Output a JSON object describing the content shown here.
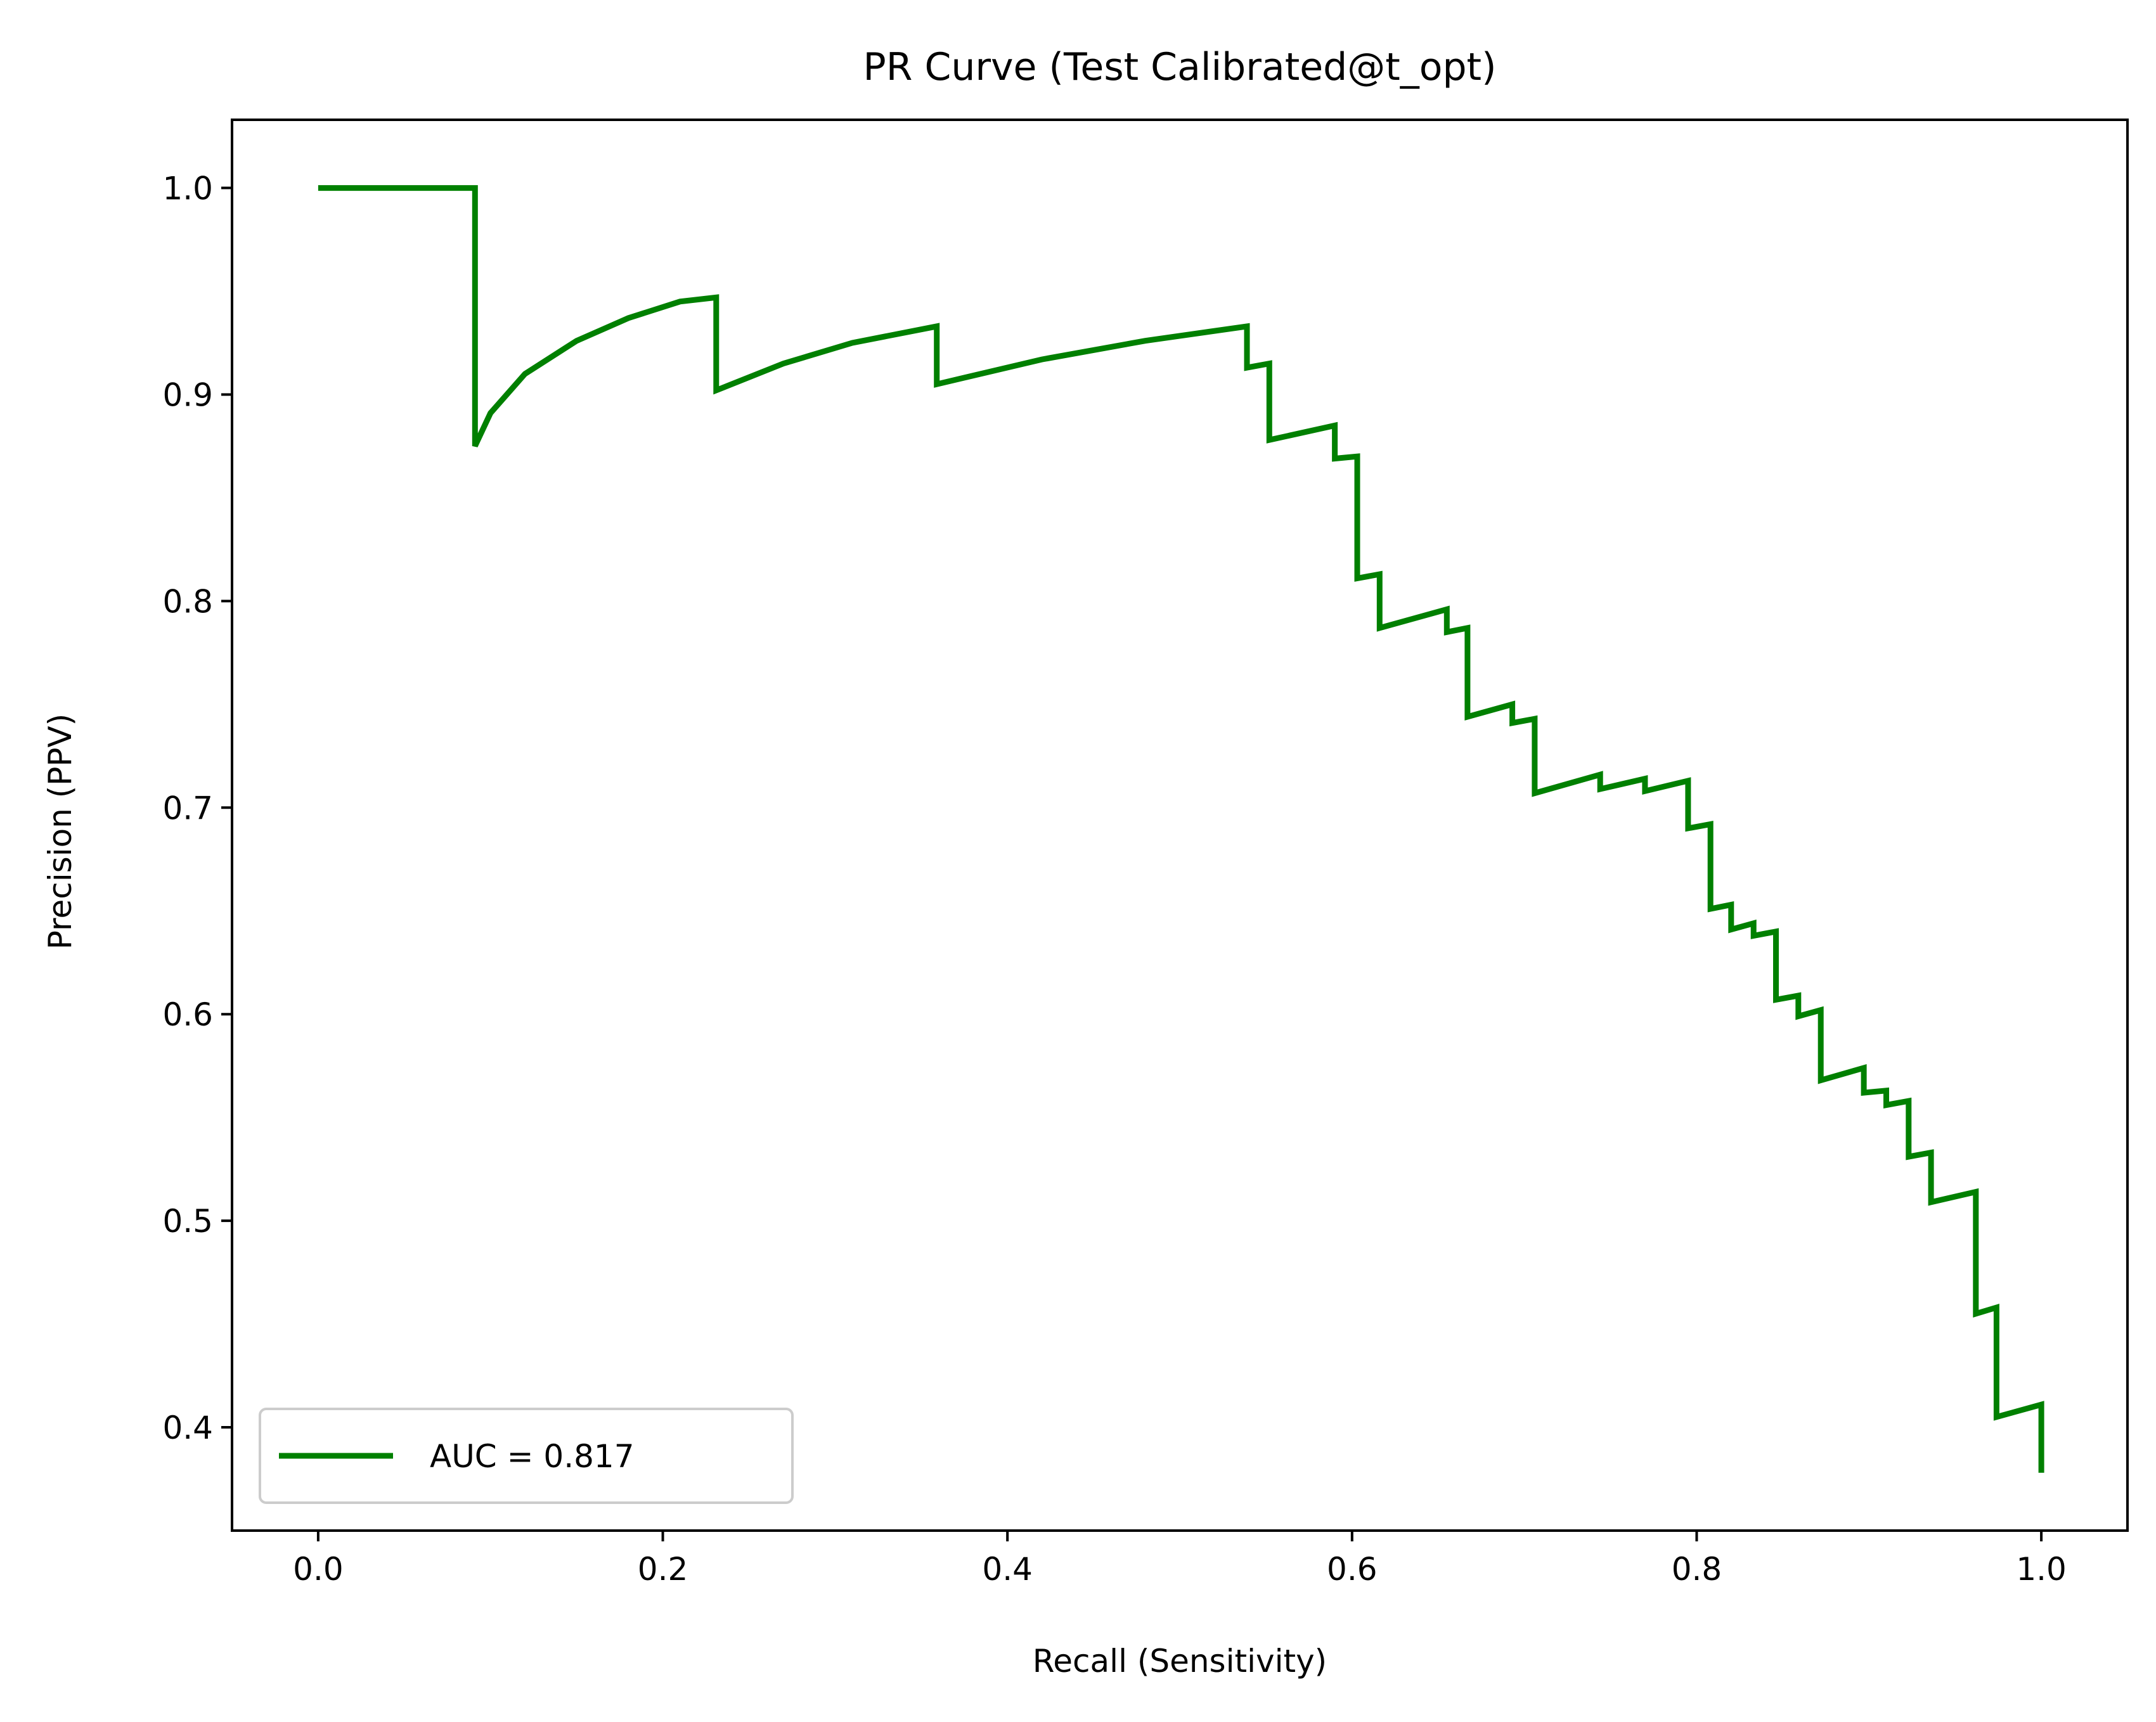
{
  "chart_data": {
    "type": "line",
    "title": "PR Curve (Test Calibrated@t_opt)",
    "xlabel": "Recall (Sensitivity)",
    "ylabel": "Precision (PPV)",
    "xlim": [
      -0.05,
      1.05
    ],
    "ylim": [
      0.35,
      1.033
    ],
    "xticks": [
      0.0,
      0.2,
      0.4,
      0.6,
      0.8,
      1.0
    ],
    "xtick_labels": [
      "0.0",
      "0.2",
      "0.4",
      "0.6",
      "0.8",
      "1.0"
    ],
    "yticks": [
      0.4,
      0.5,
      0.6,
      0.7,
      0.8,
      0.9,
      1.0
    ],
    "ytick_labels": [
      "0.4",
      "0.5",
      "0.6",
      "0.7",
      "0.8",
      "0.9",
      "1.0"
    ],
    "grid": false,
    "legend_position": "lower-left",
    "series": [
      {
        "name": "AUC = 0.817",
        "color": "#008000",
        "x": [
          0.0,
          0.091,
          0.091,
          0.1,
          0.12,
          0.15,
          0.18,
          0.21,
          0.231,
          0.231,
          0.27,
          0.31,
          0.359,
          0.359,
          0.42,
          0.48,
          0.539,
          0.539,
          0.552,
          0.552,
          0.59,
          0.59,
          0.603,
          0.603,
          0.616,
          0.616,
          0.655,
          0.655,
          0.667,
          0.667,
          0.693,
          0.693,
          0.706,
          0.706,
          0.744,
          0.744,
          0.77,
          0.77,
          0.795,
          0.795,
          0.808,
          0.808,
          0.82,
          0.82,
          0.833,
          0.833,
          0.846,
          0.846,
          0.859,
          0.859,
          0.872,
          0.872,
          0.897,
          0.897,
          0.91,
          0.91,
          0.923,
          0.923,
          0.936,
          0.936,
          0.962,
          0.962,
          0.974,
          0.974,
          1.0,
          1.0
        ],
        "y": [
          1.0,
          1.0,
          0.875,
          0.891,
          0.91,
          0.926,
          0.937,
          0.945,
          0.947,
          0.902,
          0.915,
          0.925,
          0.933,
          0.905,
          0.917,
          0.926,
          0.933,
          0.913,
          0.915,
          0.878,
          0.885,
          0.869,
          0.87,
          0.811,
          0.813,
          0.787,
          0.796,
          0.785,
          0.787,
          0.744,
          0.75,
          0.741,
          0.743,
          0.707,
          0.716,
          0.709,
          0.714,
          0.708,
          0.713,
          0.69,
          0.692,
          0.651,
          0.653,
          0.641,
          0.644,
          0.638,
          0.64,
          0.607,
          0.609,
          0.599,
          0.602,
          0.568,
          0.574,
          0.562,
          0.563,
          0.556,
          0.558,
          0.531,
          0.533,
          0.509,
          0.514,
          0.455,
          0.458,
          0.405,
          0.411,
          0.378
        ]
      }
    ]
  }
}
